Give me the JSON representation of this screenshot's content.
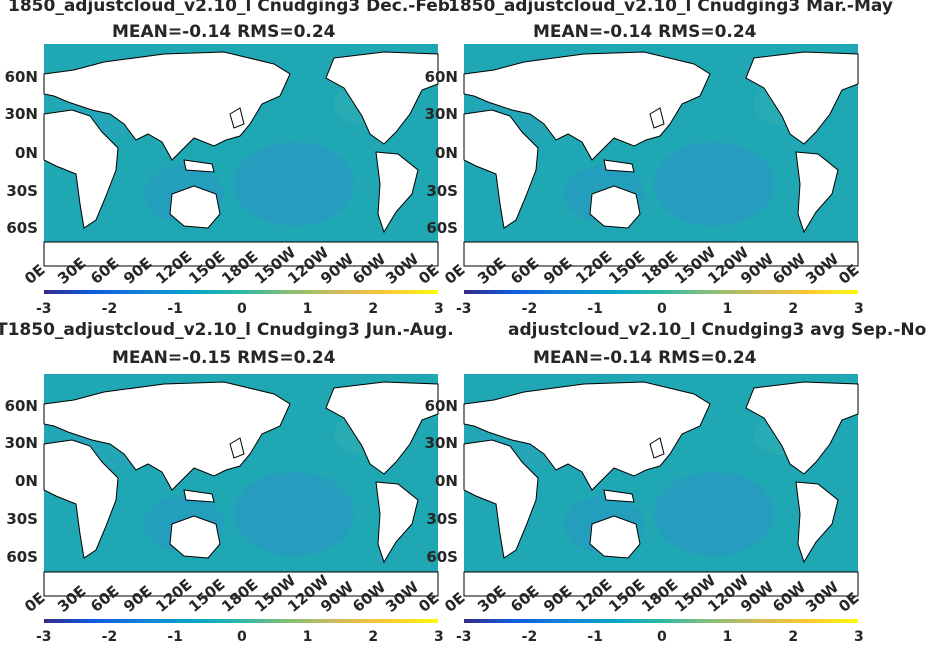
{
  "panels": [
    {
      "title_line1": "1850_adjustcloud_v2.10_l Cnudging3 Dec.-Feb.",
      "title_line2": "MEAN=-0.14   RMS=0.24"
    },
    {
      "title_line1": "1850_adjustcloud_v2.10_l Cnudging3 Mar.-May",
      "title_line2": "MEAN=-0.14   RMS=0.24"
    },
    {
      "title_line1": "T1850_adjustcloud_v2.10_l Cnudging3 Jun.-Aug.",
      "title_line2": "MEAN=-0.15   RMS=0.24"
    },
    {
      "title_line1": "adjustcloud_v2.10_l Cnudging3 avg Sep.-No",
      "title_line2": "MEAN=-0.14   RMS=0.24"
    }
  ],
  "lat_labels": [
    "60N",
    "30N",
    "0N",
    "30S",
    "60S"
  ],
  "lon_labels": [
    "0E",
    "30E",
    "60E",
    "90E",
    "120E",
    "150E",
    "180E",
    "150W",
    "120W",
    "90W",
    "60W",
    "30W",
    "0E"
  ],
  "colorbar": {
    "ticks": [
      "-3",
      "-2",
      "-1",
      "0",
      "1",
      "2",
      "3"
    ],
    "min": -3,
    "max": 3
  },
  "colors": {
    "ocean": "#1fa7b4",
    "land": "#ffffff",
    "coast": "#000000"
  }
}
